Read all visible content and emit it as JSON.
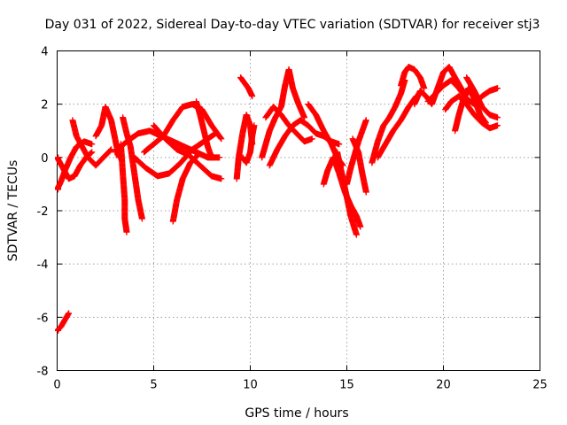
{
  "chart_data": {
    "type": "scatter",
    "title": "Day 031 of 2022, Sidereal Day-to-day VTEC variation (SDTVAR) for receiver stj3",
    "xlabel": "GPS time / hours",
    "ylabel": "SDTVAR / TECUs",
    "xlim": [
      0,
      25
    ],
    "ylim": [
      -8,
      4
    ],
    "xticks": [
      0,
      5,
      10,
      15,
      20,
      25
    ],
    "yticks": [
      -8,
      -6,
      -4,
      -2,
      0,
      2,
      4
    ],
    "xtick_labels": [
      "0",
      "5",
      "10",
      "15",
      "20",
      "25"
    ],
    "ytick_labels": [
      "-8",
      "-6",
      "-4",
      "-2",
      "0",
      "2",
      "4"
    ],
    "grid": true,
    "marker": "plus",
    "color": "#ff0000",
    "series": [
      {
        "name": "SDTVAR",
        "tracks": [
          [
            [
              0.0,
              -6.5
            ],
            [
              0.2,
              -6.35
            ],
            [
              0.4,
              -6.1
            ],
            [
              0.6,
              -5.85
            ]
          ],
          [
            [
              0.0,
              -1.2
            ],
            [
              0.2,
              -0.9
            ],
            [
              0.4,
              -0.5
            ],
            [
              0.7,
              0.0
            ],
            [
              1.0,
              0.4
            ],
            [
              1.4,
              0.6
            ],
            [
              1.8,
              0.5
            ]
          ],
          [
            [
              0.0,
              0.0
            ],
            [
              0.3,
              -0.4
            ],
            [
              0.6,
              -0.8
            ],
            [
              0.9,
              -0.7
            ],
            [
              1.2,
              -0.3
            ],
            [
              1.5,
              0.0
            ],
            [
              1.8,
              0.2
            ]
          ],
          [
            [
              0.8,
              1.4
            ],
            [
              1.0,
              0.8
            ],
            [
              1.3,
              0.4
            ],
            [
              1.6,
              0.0
            ],
            [
              2.0,
              -0.3
            ],
            [
              2.4,
              0.0
            ],
            [
              2.8,
              0.3
            ]
          ],
          [
            [
              2.0,
              0.8
            ],
            [
              2.3,
              1.2
            ],
            [
              2.5,
              1.9
            ],
            [
              2.8,
              1.4
            ],
            [
              3.0,
              0.7
            ],
            [
              3.2,
              0.0
            ]
          ],
          [
            [
              3.3,
              0.5
            ],
            [
              3.4,
              -0.6
            ],
            [
              3.5,
              -1.6
            ],
            [
              3.5,
              -2.3
            ],
            [
              3.6,
              -2.8
            ]
          ],
          [
            [
              3.4,
              1.5
            ],
            [
              3.6,
              0.9
            ],
            [
              3.8,
              0.4
            ],
            [
              4.0,
              -0.6
            ],
            [
              4.2,
              -1.6
            ],
            [
              4.4,
              -2.3
            ]
          ],
          [
            [
              3.0,
              0.2
            ],
            [
              3.6,
              0.6
            ],
            [
              4.2,
              0.9
            ],
            [
              4.8,
              1.0
            ],
            [
              5.4,
              0.8
            ],
            [
              6.0,
              0.6
            ],
            [
              6.6,
              0.4
            ],
            [
              7.2,
              0.2
            ],
            [
              7.8,
              0.0
            ],
            [
              8.4,
              0.0
            ]
          ],
          [
            [
              4.0,
              0.0
            ],
            [
              4.6,
              -0.4
            ],
            [
              5.2,
              -0.7
            ],
            [
              5.8,
              -0.6
            ],
            [
              6.4,
              -0.2
            ],
            [
              7.0,
              0.3
            ],
            [
              7.6,
              0.6
            ],
            [
              8.2,
              0.9
            ]
          ],
          [
            [
              4.5,
              0.2
            ],
            [
              5.0,
              0.5
            ],
            [
              5.5,
              0.8
            ],
            [
              6.0,
              1.4
            ],
            [
              6.5,
              1.9
            ],
            [
              7.0,
              2.0
            ],
            [
              7.5,
              1.8
            ],
            [
              8.0,
              1.2
            ],
            [
              8.5,
              0.7
            ]
          ],
          [
            [
              5.0,
              1.2
            ],
            [
              5.6,
              0.7
            ],
            [
              6.2,
              0.3
            ],
            [
              6.8,
              0.1
            ],
            [
              7.4,
              -0.3
            ],
            [
              8.0,
              -0.7
            ],
            [
              8.5,
              -0.8
            ]
          ],
          [
            [
              6.0,
              -2.4
            ],
            [
              6.2,
              -1.6
            ],
            [
              6.5,
              -0.8
            ],
            [
              6.9,
              -0.2
            ],
            [
              7.3,
              0.1
            ]
          ],
          [
            [
              7.2,
              2.1
            ],
            [
              7.4,
              1.6
            ],
            [
              7.6,
              1.0
            ],
            [
              7.8,
              0.4
            ],
            [
              8.0,
              0.0
            ]
          ],
          [
            [
              9.3,
              -0.8
            ],
            [
              9.4,
              0.0
            ],
            [
              9.6,
              0.9
            ],
            [
              9.8,
              1.6
            ],
            [
              10.0,
              1.2
            ],
            [
              10.1,
              0.5
            ]
          ],
          [
            [
              9.5,
              3.0
            ],
            [
              9.7,
              2.8
            ],
            [
              9.9,
              2.6
            ],
            [
              10.1,
              2.3
            ]
          ],
          [
            [
              9.6,
              0.0
            ],
            [
              9.8,
              -0.2
            ],
            [
              10.0,
              0.2
            ],
            [
              10.1,
              0.8
            ],
            [
              10.2,
              1.2
            ]
          ],
          [
            [
              10.6,
              0.0
            ],
            [
              10.8,
              0.5
            ],
            [
              11.0,
              1.0
            ],
            [
              11.3,
              1.5
            ],
            [
              11.6,
              1.9
            ],
            [
              11.8,
              2.7
            ],
            [
              12.0,
              3.3
            ],
            [
              12.2,
              2.6
            ],
            [
              12.5,
              2.0
            ],
            [
              12.8,
              1.5
            ]
          ],
          [
            [
              10.8,
              1.5
            ],
            [
              11.2,
              1.9
            ],
            [
              11.6,
              1.6
            ],
            [
              12.0,
              1.2
            ],
            [
              12.4,
              0.9
            ],
            [
              12.8,
              0.6
            ],
            [
              13.2,
              0.7
            ]
          ],
          [
            [
              11.0,
              -0.3
            ],
            [
              11.4,
              0.3
            ],
            [
              11.8,
              0.8
            ],
            [
              12.2,
              1.2
            ],
            [
              12.6,
              1.4
            ],
            [
              13.0,
              1.2
            ],
            [
              13.4,
              0.9
            ],
            [
              13.8,
              0.8
            ],
            [
              14.2,
              0.6
            ],
            [
              14.6,
              0.5
            ]
          ],
          [
            [
              13.0,
              2.0
            ],
            [
              13.4,
              1.6
            ],
            [
              13.8,
              1.0
            ],
            [
              14.2,
              0.5
            ],
            [
              14.5,
              0.0
            ],
            [
              14.8,
              -0.3
            ]
          ],
          [
            [
              13.8,
              -1.0
            ],
            [
              14.0,
              -0.5
            ],
            [
              14.3,
              0.0
            ],
            [
              14.6,
              -0.6
            ],
            [
              14.9,
              -1.3
            ],
            [
              15.2,
              -1.8
            ],
            [
              15.5,
              -2.2
            ],
            [
              15.7,
              -2.6
            ]
          ],
          [
            [
              14.5,
              0.2
            ],
            [
              14.8,
              -0.8
            ],
            [
              15.0,
              -1.5
            ],
            [
              15.2,
              -2.2
            ],
            [
              15.5,
              -2.9
            ]
          ],
          [
            [
              15.0,
              -1.0
            ],
            [
              15.2,
              -0.4
            ],
            [
              15.4,
              0.1
            ],
            [
              15.6,
              0.6
            ],
            [
              15.8,
              1.0
            ],
            [
              16.0,
              1.4
            ]
          ],
          [
            [
              15.3,
              0.7
            ],
            [
              15.6,
              0.2
            ],
            [
              15.8,
              -0.6
            ],
            [
              16.0,
              -1.3
            ]
          ],
          [
            [
              16.3,
              -0.2
            ],
            [
              16.6,
              0.6
            ],
            [
              16.9,
              1.2
            ],
            [
              17.2,
              1.5
            ],
            [
              17.5,
              1.9
            ],
            [
              17.8,
              2.4
            ],
            [
              18.0,
              2.9
            ]
          ],
          [
            [
              16.6,
              0.0
            ],
            [
              17.0,
              0.5
            ],
            [
              17.4,
              1.0
            ],
            [
              17.8,
              1.4
            ],
            [
              18.2,
              1.9
            ],
            [
              18.6,
              2.3
            ]
          ],
          [
            [
              17.8,
              2.7
            ],
            [
              18.0,
              3.2
            ],
            [
              18.2,
              3.4
            ],
            [
              18.5,
              3.3
            ],
            [
              18.8,
              3.0
            ],
            [
              19.0,
              2.6
            ]
          ],
          [
            [
              18.5,
              2.0
            ],
            [
              18.8,
              2.5
            ],
            [
              19.1,
              2.3
            ],
            [
              19.4,
              2.0
            ],
            [
              19.7,
              2.6
            ],
            [
              20.0,
              3.2
            ],
            [
              20.3,
              3.4
            ],
            [
              20.6,
              3.0
            ],
            [
              21.0,
              2.5
            ]
          ],
          [
            [
              19.2,
              2.1
            ],
            [
              19.6,
              2.4
            ],
            [
              20.0,
              2.7
            ],
            [
              20.4,
              2.9
            ],
            [
              20.8,
              2.6
            ],
            [
              21.2,
              2.2
            ],
            [
              21.6,
              2.0
            ],
            [
              22.0,
              2.3
            ],
            [
              22.4,
              2.5
            ],
            [
              22.8,
              2.6
            ]
          ],
          [
            [
              20.1,
              1.8
            ],
            [
              20.4,
              2.1
            ],
            [
              20.8,
              2.3
            ],
            [
              21.2,
              2.0
            ],
            [
              21.6,
              1.6
            ],
            [
              22.0,
              1.3
            ],
            [
              22.4,
              1.1
            ],
            [
              22.8,
              1.2
            ]
          ],
          [
            [
              20.6,
              1.0
            ],
            [
              20.8,
              1.6
            ],
            [
              21.0,
              2.1
            ],
            [
              21.3,
              2.6
            ],
            [
              21.6,
              2.2
            ],
            [
              21.9,
              1.6
            ],
            [
              22.2,
              1.3
            ]
          ],
          [
            [
              21.2,
              3.0
            ],
            [
              21.6,
              2.5
            ],
            [
              22.0,
              1.9
            ],
            [
              22.4,
              1.6
            ],
            [
              22.8,
              1.5
            ]
          ]
        ]
      }
    ]
  }
}
